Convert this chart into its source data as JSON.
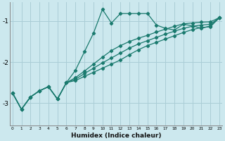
{
  "xlabel": "Humidex (Indice chaleur)",
  "background_color": "#cce8ee",
  "grid_color": "#aacdd6",
  "line_color": "#1a7a6e",
  "x_ticks": [
    0,
    1,
    2,
    3,
    4,
    5,
    6,
    7,
    8,
    9,
    10,
    11,
    12,
    13,
    14,
    15,
    16,
    17,
    18,
    19,
    20,
    21,
    22,
    23
  ],
  "y_ticks": [
    -1,
    -2,
    -3
  ],
  "ylim": [
    -3.55,
    -0.55
  ],
  "xlim": [
    -0.3,
    23.3
  ],
  "line1_y": [
    -2.75,
    -3.15,
    -2.85,
    -2.7,
    -2.6,
    -2.9,
    -2.5,
    -2.2,
    -1.75,
    -1.3,
    -0.72,
    -1.05,
    -0.82,
    -0.82,
    -0.82,
    -0.82,
    -1.1,
    -1.18,
    -1.22,
    -1.08,
    -1.12,
    -1.18,
    -1.12,
    -0.92
  ],
  "line2_y": [
    -2.75,
    -3.15,
    -2.85,
    -2.7,
    -2.6,
    -2.9,
    -2.5,
    -2.38,
    -2.22,
    -2.05,
    -1.88,
    -1.72,
    -1.6,
    -1.5,
    -1.42,
    -1.35,
    -1.27,
    -1.2,
    -1.13,
    -1.07,
    -1.05,
    -1.03,
    -1.02,
    -0.92
  ],
  "line3_y": [
    -2.75,
    -3.15,
    -2.85,
    -2.7,
    -2.6,
    -2.9,
    -2.5,
    -2.42,
    -2.28,
    -2.15,
    -2.02,
    -1.9,
    -1.78,
    -1.66,
    -1.56,
    -1.48,
    -1.4,
    -1.32,
    -1.25,
    -1.18,
    -1.13,
    -1.1,
    -1.08,
    -0.92
  ],
  "line4_y": [
    -2.75,
    -3.15,
    -2.85,
    -2.7,
    -2.6,
    -2.9,
    -2.5,
    -2.45,
    -2.35,
    -2.25,
    -2.15,
    -2.05,
    -1.95,
    -1.82,
    -1.7,
    -1.6,
    -1.52,
    -1.44,
    -1.36,
    -1.28,
    -1.21,
    -1.16,
    -1.14,
    -0.92
  ]
}
